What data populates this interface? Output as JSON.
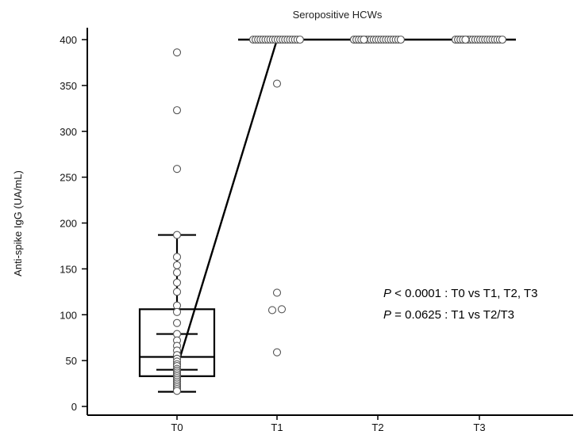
{
  "chart_data": {
    "type": "scatter",
    "title": "Seropositive HCWs",
    "xlabel": "",
    "ylabel": "Anti-spike IgG (UA/mL)",
    "categories": [
      "T0",
      "T1",
      "T2",
      "T3"
    ],
    "ylim": [
      -5,
      412
    ],
    "yticks": [
      0,
      50,
      100,
      150,
      200,
      250,
      300,
      350,
      400
    ],
    "grid": false,
    "series": [
      {
        "category": "T0",
        "values": [
          386,
          323,
          259,
          187,
          163,
          154,
          146,
          135,
          125,
          110,
          103,
          91,
          79,
          72,
          66,
          61,
          56,
          52,
          49,
          46,
          44,
          41,
          39,
          37,
          35,
          33,
          31,
          29,
          27,
          25,
          23,
          21,
          19,
          17
        ]
      },
      {
        "category": "T1",
        "values": [
          400,
          400,
          400,
          400,
          400,
          400,
          400,
          400,
          400,
          400,
          400,
          400,
          400,
          400,
          400,
          400,
          400,
          400,
          400,
          400,
          352,
          124,
          106,
          105,
          59
        ]
      },
      {
        "category": "T2",
        "values": [
          400,
          400,
          400,
          400,
          400,
          400,
          400,
          400,
          400,
          400,
          400,
          400,
          400,
          400,
          400,
          400,
          400,
          400,
          400,
          400,
          400,
          400,
          400,
          400,
          400
        ]
      },
      {
        "category": "T3",
        "values": [
          400,
          400,
          400,
          400,
          400,
          400,
          400,
          400,
          400,
          400,
          400,
          400,
          400,
          400,
          400,
          400,
          400,
          400,
          400,
          400,
          400,
          400,
          400,
          400,
          400
        ]
      }
    ],
    "boxplot": {
      "category": "T0",
      "whisker_high": 187,
      "q3": 106,
      "q3_inner": 79,
      "median": 54,
      "q1_inner": 40,
      "q1": 33,
      "whisker_low": 16
    },
    "median_line": {
      "categories": [
        "T0",
        "T1",
        "T2",
        "T3"
      ],
      "values": [
        54,
        400,
        400,
        400
      ]
    },
    "annotations": [
      {
        "p": "P",
        "text": " < 0.0001 : T0 vs T1, T2, T3"
      },
      {
        "p": "P",
        "text": " = 0.0625 : T1 vs T2/T3"
      }
    ]
  }
}
